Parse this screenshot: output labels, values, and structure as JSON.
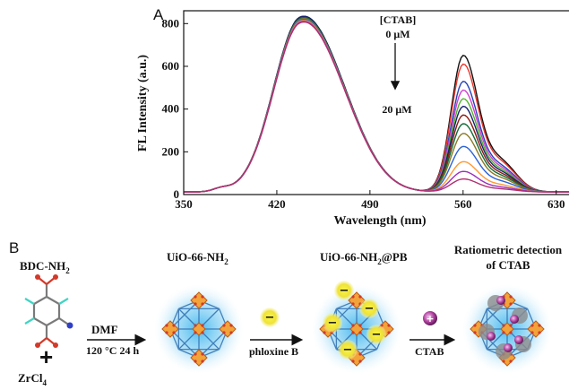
{
  "panel_a": {
    "letter": "A",
    "chart_data": {
      "type": "line",
      "xlabel": "Wavelength (nm)",
      "ylabel": "FL Intensity (a.u.)",
      "xlim": [
        350,
        645
      ],
      "ylim": [
        0,
        860
      ],
      "xticks": [
        "350",
        "420",
        "490",
        "560",
        "630"
      ],
      "yticks": [
        "0",
        "200",
        "400",
        "600",
        "800"
      ],
      "legend": {
        "title": "[CTAB]",
        "start": "0 μM",
        "end": "20 μM",
        "placement": "top-right"
      },
      "peak1_nm": 437,
      "peak2_nm": 560,
      "series": [
        {
          "peak1": 770,
          "peak2": 630,
          "color": "#111111"
        },
        {
          "peak1": 765,
          "peak2": 590,
          "color": "#e8372c"
        },
        {
          "peak1": 760,
          "peak2": 510,
          "color": "#2742b8"
        },
        {
          "peak1": 768,
          "peak2": 470,
          "color": "#d03fd0"
        },
        {
          "peak1": 762,
          "peak2": 430,
          "color": "#52b52f"
        },
        {
          "peak1": 770,
          "peak2": 395,
          "color": "#16206a"
        },
        {
          "peak1": 758,
          "peak2": 355,
          "color": "#8a1a14"
        },
        {
          "peak1": 764,
          "peak2": 315,
          "color": "#0f6b34"
        },
        {
          "peak1": 760,
          "peak2": 270,
          "color": "#8a7a26"
        },
        {
          "peak1": 756,
          "peak2": 210,
          "color": "#2b62d6"
        },
        {
          "peak1": 752,
          "peak2": 140,
          "color": "#ff9933"
        },
        {
          "peak1": 748,
          "peak2": 95,
          "color": "#9c2fbd"
        },
        {
          "peak1": 745,
          "peak2": 60,
          "color": "#b03070"
        }
      ]
    }
  },
  "panel_b": {
    "letter": "B",
    "reactant": "BDC-NH",
    "reactant_sub": "2",
    "plus": "+",
    "metal": "ZrCl",
    "metal_sub": "4",
    "mof1": "UiO-66-NH",
    "mof1_sub": "2",
    "mof2": "UiO-66-NH",
    "mof2_sub": "2",
    "mof2_suffix": "@PB",
    "final_line1": "Ratiometric detection",
    "final_line2": "of CTAB",
    "step1_top": "DMF",
    "step1_bottom": "120 °C 24 h",
    "step2_bottom": "phloxine B",
    "step3_bottom": "CTAB",
    "minus_sign": "−",
    "plus_sign": "+",
    "colors": {
      "glow": "#7fd3f7",
      "framework": "#2f6fb0",
      "cluster": "#f2a33a",
      "dye": "#f6ee3a",
      "ctab": "#b0409f"
    }
  }
}
